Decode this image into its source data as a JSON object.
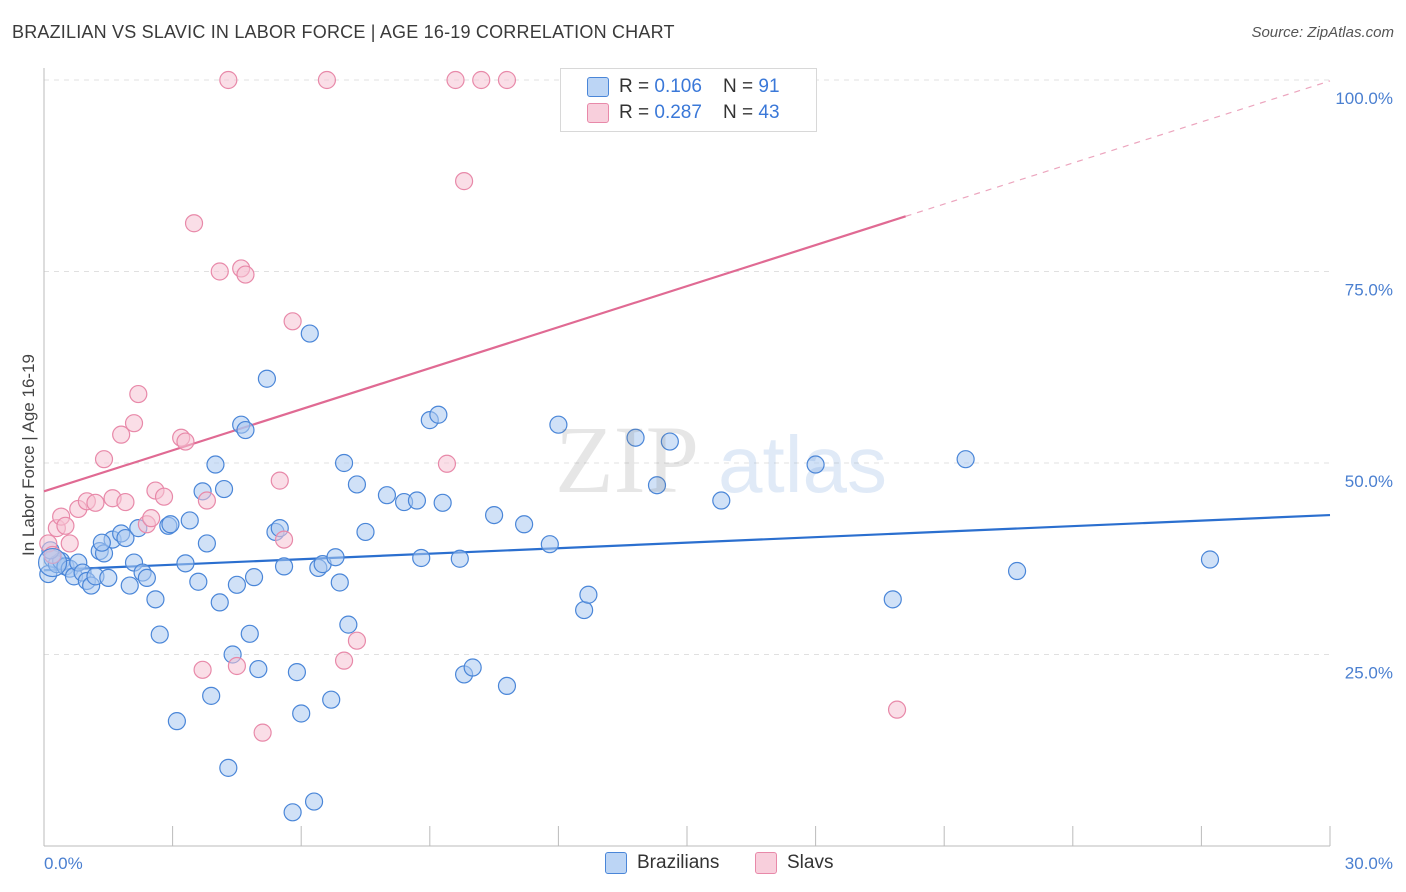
{
  "header": {
    "title": "BRAZILIAN VS SLAVIC IN LABOR FORCE | AGE 16-19 CORRELATION CHART",
    "source": "Source: ZipAtlas.com"
  },
  "legend": {
    "rows": [
      {
        "r_label": "R = ",
        "r_value": "0.106",
        "n_label": "N = ",
        "n_value": "91"
      },
      {
        "r_label": "R = ",
        "r_value": "0.287",
        "n_label": "N = ",
        "n_value": "43"
      }
    ],
    "bottom": [
      "Brazilians",
      "Slavs"
    ]
  },
  "colors": {
    "blue_fill": "#a9c8f0",
    "blue_stroke": "#4a86d8",
    "blue_line": "#2b6fcf",
    "pink_fill": "#f6c3d3",
    "pink_stroke": "#e889a9",
    "pink_line": "#e06a93",
    "tick_text": "#4a7fd0",
    "grid": "#e0e0e0"
  },
  "chart_data": {
    "type": "scatter",
    "title": "BRAZILIAN VS SLAVIC IN LABOR FORCE | AGE 16-19 CORRELATION CHART",
    "xlabel": "",
    "ylabel": "In Labor Force | Age 16-19",
    "xlim": [
      0,
      30
    ],
    "ylim": [
      0,
      100
    ],
    "x_tick_labels": [
      "0.0%",
      "30.0%"
    ],
    "y_ticks": [
      25,
      50,
      75,
      100
    ],
    "y_tick_labels": [
      "25.0%",
      "50.0%",
      "75.0%",
      "100.0%"
    ],
    "grid": true,
    "legend_position": "top-center",
    "series": [
      {
        "name": "Brazilians",
        "r": 0.106,
        "n": 91,
        "trend": {
          "x": [
            0,
            30
          ],
          "y": [
            36.0,
            43.2
          ],
          "dashed_after": null
        },
        "points": [
          [
            0.1,
            35.5
          ],
          [
            0.2,
            37.5
          ],
          [
            0.3,
            36.8
          ],
          [
            0.4,
            37.2
          ],
          [
            0.5,
            36.5
          ],
          [
            0.6,
            36.2
          ],
          [
            0.7,
            35.2
          ],
          [
            0.8,
            37.0
          ],
          [
            0.9,
            35.7
          ],
          [
            1.0,
            34.6
          ],
          [
            1.1,
            34.0
          ],
          [
            1.2,
            35.2
          ],
          [
            1.3,
            38.5
          ],
          [
            1.4,
            38.2
          ],
          [
            1.5,
            35.0
          ],
          [
            1.6,
            40.0
          ],
          [
            1.8,
            40.8
          ],
          [
            1.9,
            40.2
          ],
          [
            2.0,
            34.0
          ],
          [
            2.1,
            37.0
          ],
          [
            2.2,
            41.5
          ],
          [
            2.3,
            35.7
          ],
          [
            2.4,
            35.0
          ],
          [
            2.6,
            32.2
          ],
          [
            2.7,
            27.6
          ],
          [
            2.9,
            41.8
          ],
          [
            2.95,
            42.0
          ],
          [
            3.1,
            16.3
          ],
          [
            3.3,
            36.9
          ],
          [
            3.4,
            42.5
          ],
          [
            3.6,
            34.5
          ],
          [
            3.7,
            46.3
          ],
          [
            3.8,
            39.5
          ],
          [
            3.9,
            19.6
          ],
          [
            4.0,
            49.8
          ],
          [
            4.1,
            31.8
          ],
          [
            4.2,
            46.6
          ],
          [
            4.3,
            10.2
          ],
          [
            4.4,
            25.0
          ],
          [
            4.5,
            34.1
          ],
          [
            4.6,
            55.0
          ],
          [
            4.7,
            54.3
          ],
          [
            4.8,
            27.7
          ],
          [
            4.9,
            35.1
          ],
          [
            5.0,
            23.1
          ],
          [
            5.2,
            61.0
          ],
          [
            5.4,
            41.0
          ],
          [
            5.5,
            41.5
          ],
          [
            5.6,
            36.5
          ],
          [
            5.8,
            4.4
          ],
          [
            5.9,
            22.7
          ],
          [
            6.0,
            17.3
          ],
          [
            6.2,
            66.9
          ],
          [
            6.3,
            5.8
          ],
          [
            6.4,
            36.3
          ],
          [
            6.5,
            36.8
          ],
          [
            6.7,
            19.1
          ],
          [
            6.8,
            37.7
          ],
          [
            6.9,
            34.4
          ],
          [
            7.0,
            50.0
          ],
          [
            7.1,
            28.9
          ],
          [
            7.3,
            47.2
          ],
          [
            7.5,
            41.0
          ],
          [
            8.0,
            45.8
          ],
          [
            8.4,
            44.9
          ],
          [
            8.7,
            45.1
          ],
          [
            8.8,
            37.6
          ],
          [
            9.0,
            55.6
          ],
          [
            9.3,
            44.8
          ],
          [
            9.7,
            37.5
          ],
          [
            9.8,
            22.4
          ],
          [
            10.0,
            23.3
          ],
          [
            10.5,
            43.2
          ],
          [
            10.8,
            20.9
          ],
          [
            11.2,
            42.0
          ],
          [
            11.8,
            39.4
          ],
          [
            12.0,
            55.0
          ],
          [
            12.6,
            30.8
          ],
          [
            12.7,
            32.8
          ],
          [
            13.8,
            53.3
          ],
          [
            14.3,
            47.1
          ],
          [
            14.6,
            52.8
          ],
          [
            15.8,
            45.1
          ],
          [
            18.0,
            49.8
          ],
          [
            19.8,
            32.2
          ],
          [
            21.5,
            50.5
          ],
          [
            22.7,
            35.9
          ],
          [
            27.2,
            37.4
          ],
          [
            0.15,
            38.6
          ],
          [
            1.35,
            39.6
          ],
          [
            9.2,
            56.3
          ]
        ]
      },
      {
        "name": "Slavs",
        "r": 0.287,
        "n": 43,
        "trend": {
          "x": [
            0,
            20.1
          ],
          "y": [
            46.3,
            82.2
          ],
          "dashed_after": 30
        },
        "points": [
          [
            0.1,
            39.5
          ],
          [
            0.2,
            38.0
          ],
          [
            0.3,
            41.5
          ],
          [
            0.4,
            43.0
          ],
          [
            0.5,
            41.8
          ],
          [
            0.6,
            39.5
          ],
          [
            0.8,
            44.0
          ],
          [
            1.0,
            45.0
          ],
          [
            1.2,
            44.8
          ],
          [
            1.4,
            50.5
          ],
          [
            1.6,
            45.4
          ],
          [
            1.8,
            53.7
          ],
          [
            1.9,
            44.9
          ],
          [
            2.1,
            55.2
          ],
          [
            2.2,
            59.0
          ],
          [
            2.4,
            42.0
          ],
          [
            2.5,
            42.8
          ],
          [
            2.6,
            46.4
          ],
          [
            2.8,
            45.6
          ],
          [
            3.2,
            53.3
          ],
          [
            3.3,
            52.8
          ],
          [
            3.5,
            81.3
          ],
          [
            3.7,
            23.0
          ],
          [
            3.8,
            45.1
          ],
          [
            4.1,
            75.0
          ],
          [
            4.3,
            100
          ],
          [
            4.5,
            23.5
          ],
          [
            4.6,
            75.4
          ],
          [
            4.7,
            74.6
          ],
          [
            5.1,
            14.8
          ],
          [
            5.5,
            47.7
          ],
          [
            5.6,
            40.0
          ],
          [
            5.8,
            68.5
          ],
          [
            6.6,
            100
          ],
          [
            7.0,
            24.2
          ],
          [
            7.3,
            26.8
          ],
          [
            9.4,
            49.9
          ],
          [
            9.6,
            100
          ],
          [
            9.8,
            86.8
          ],
          [
            10.2,
            100
          ],
          [
            10.8,
            100
          ],
          [
            13.0,
            100
          ],
          [
            19.9,
            17.8
          ]
        ]
      }
    ]
  }
}
